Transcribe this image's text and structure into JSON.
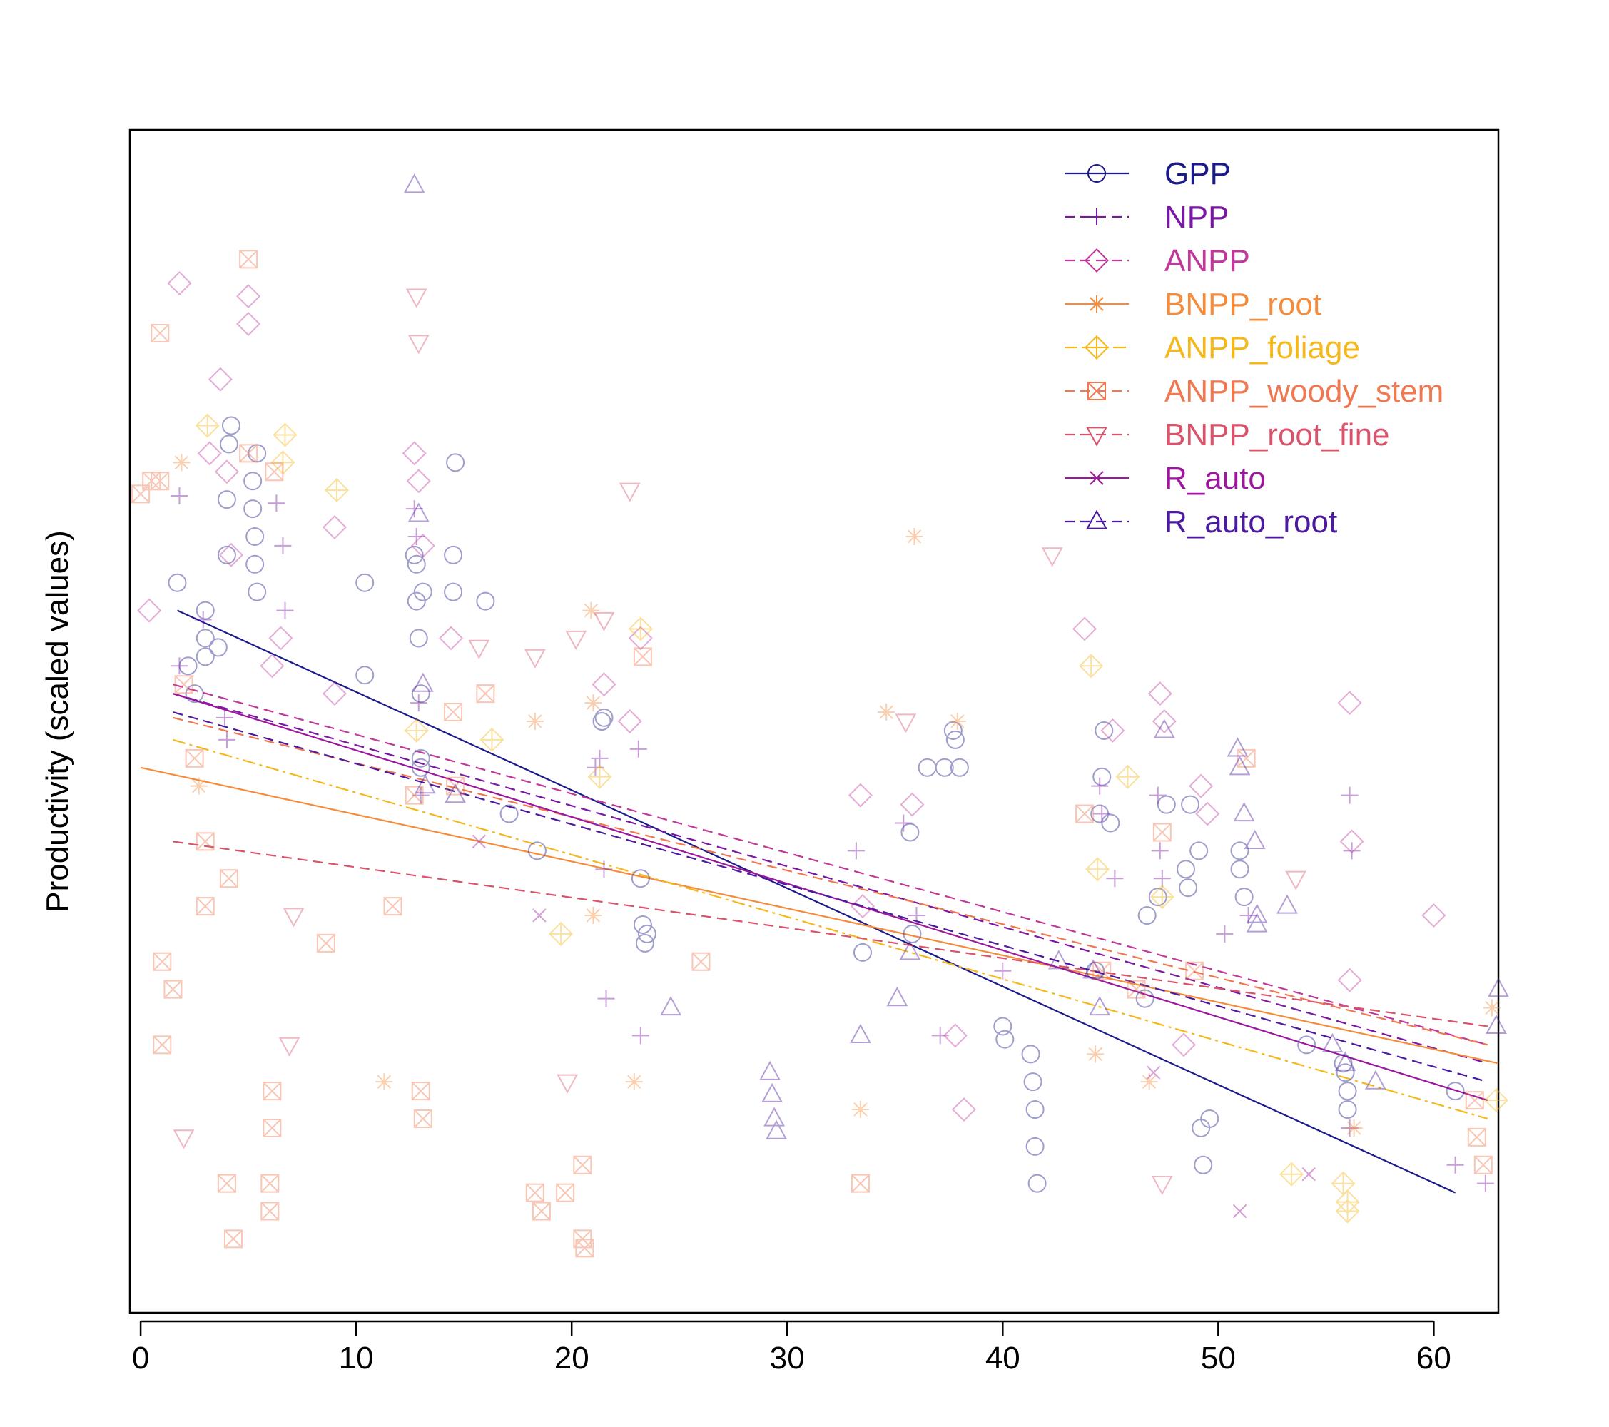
{
  "chart_data": {
    "type": "scatter",
    "title": "",
    "xlabel": "",
    "ylabel": "Productivity (scaled values)",
    "xlim": [
      -0.5,
      63
    ],
    "ylim": [
      -2.6,
      3.8
    ],
    "x_ticks": [
      "0",
      "10",
      "20",
      "30",
      "40",
      "50",
      "60"
    ],
    "y_ticks_shown": false,
    "grid": false,
    "legend_position": "top-right",
    "series": [
      {
        "name": "GPP",
        "color": "#1b1a8a",
        "marker": "circle",
        "line": "solid",
        "fit": {
          "x": [
            1.7,
            61
          ],
          "y": [
            1.2,
            -1.95
          ]
        },
        "points": [
          [
            1.7,
            1.35
          ],
          [
            2.2,
            0.9
          ],
          [
            2.5,
            0.75
          ],
          [
            3,
            1.2
          ],
          [
            3,
            1.05
          ],
          [
            3,
            0.95
          ],
          [
            3.6,
            1.0
          ],
          [
            4,
            1.5
          ],
          [
            4,
            1.8
          ],
          [
            4.1,
            2.1
          ],
          [
            4.2,
            2.2
          ],
          [
            5.2,
            1.9
          ],
          [
            5.2,
            1.75
          ],
          [
            5.3,
            1.6
          ],
          [
            5.3,
            1.45
          ],
          [
            5.4,
            2.05
          ],
          [
            5.4,
            1.3
          ],
          [
            10.4,
            1.35
          ],
          [
            10.4,
            0.85
          ],
          [
            12.7,
            1.5
          ],
          [
            12.8,
            1.45
          ],
          [
            12.8,
            1.25
          ],
          [
            12.9,
            1.05
          ],
          [
            13,
            0.75
          ],
          [
            13,
            0.4
          ],
          [
            13,
            0.35
          ],
          [
            13.1,
            1.3
          ],
          [
            14.5,
            1.5
          ],
          [
            14.5,
            1.3
          ],
          [
            14.6,
            2.0
          ],
          [
            16,
            1.25
          ],
          [
            17.1,
            0.1
          ],
          [
            18.4,
            -0.1
          ],
          [
            21.4,
            0.6
          ],
          [
            21.5,
            0.62
          ],
          [
            23.2,
            -0.25
          ],
          [
            23.3,
            -0.5
          ],
          [
            23.4,
            -0.6
          ],
          [
            23.5,
            -0.55
          ],
          [
            33.5,
            -0.65
          ],
          [
            35.7,
            0.0
          ],
          [
            35.8,
            -0.55
          ],
          [
            36.5,
            0.35
          ],
          [
            37.3,
            0.35
          ],
          [
            37.7,
            0.55
          ],
          [
            37.8,
            0.5
          ],
          [
            38,
            0.35
          ],
          [
            40,
            -1.05
          ],
          [
            40.1,
            -1.12
          ],
          [
            41.3,
            -1.2
          ],
          [
            41.4,
            -1.35
          ],
          [
            41.5,
            -1.5
          ],
          [
            41.5,
            -1.7
          ],
          [
            41.6,
            -1.9
          ],
          [
            44.3,
            -0.75
          ],
          [
            44.5,
            0.1
          ],
          [
            44.6,
            0.3
          ],
          [
            44.7,
            0.55
          ],
          [
            45,
            0.05
          ],
          [
            46.6,
            -0.9
          ],
          [
            46.7,
            -0.45
          ],
          [
            47.2,
            -0.35
          ],
          [
            47.6,
            0.15
          ],
          [
            48.5,
            -0.2
          ],
          [
            48.6,
            -0.3
          ],
          [
            48.7,
            0.15
          ],
          [
            49.1,
            -0.1
          ],
          [
            49.2,
            -1.6
          ],
          [
            49.3,
            -1.8
          ],
          [
            49.6,
            -1.55
          ],
          [
            51,
            -0.1
          ],
          [
            51,
            -0.2
          ],
          [
            51.2,
            -0.35
          ],
          [
            54.1,
            -1.15
          ],
          [
            55.8,
            -1.25
          ],
          [
            55.9,
            -1.3
          ],
          [
            56,
            -1.4
          ],
          [
            56,
            -1.5
          ],
          [
            61,
            -1.4
          ]
        ]
      },
      {
        "name": "NPP",
        "color": "#7b17a5",
        "marker": "plus",
        "line": "dashed",
        "fit": {
          "x": [
            1.5,
            62.5
          ],
          "y": [
            0.75,
            -1.25
          ]
        },
        "points": [
          [
            1.8,
            1.82
          ],
          [
            1.8,
            0.9
          ],
          [
            2.9,
            1.15
          ],
          [
            3.9,
            0.62
          ],
          [
            4,
            0.5
          ],
          [
            6.3,
            1.78
          ],
          [
            6.6,
            1.55
          ],
          [
            6.7,
            1.2
          ],
          [
            12.7,
            1.75
          ],
          [
            12.8,
            1.6
          ],
          [
            12.9,
            0.7
          ],
          [
            13,
            0.2
          ],
          [
            21.1,
            0.35
          ],
          [
            21.3,
            0.4
          ],
          [
            21.5,
            -0.2
          ],
          [
            21.6,
            -0.9
          ],
          [
            23.2,
            -1.1
          ],
          [
            23.1,
            0.45
          ],
          [
            33.2,
            -0.1
          ],
          [
            35.4,
            0.05
          ],
          [
            36,
            -0.45
          ],
          [
            37.1,
            -1.1
          ],
          [
            40,
            -0.75
          ],
          [
            44.5,
            0.25
          ],
          [
            44.6,
            0.1
          ],
          [
            45.2,
            -0.25
          ],
          [
            47.2,
            0.2
          ],
          [
            47.3,
            -0.1
          ],
          [
            47.4,
            -0.25
          ],
          [
            50.3,
            -0.55
          ],
          [
            51.4,
            -0.45
          ],
          [
            56.1,
            0.2
          ],
          [
            56.2,
            -0.1
          ],
          [
            56.1,
            -1.6
          ],
          [
            61,
            -1.8
          ],
          [
            62.4,
            -1.9
          ]
        ]
      },
      {
        "name": "ANPP",
        "color": "#c0399a",
        "marker": "diamond",
        "line": "dashed",
        "fit": {
          "x": [
            1.5,
            62.5
          ],
          "y": [
            0.8,
            -1.15
          ]
        },
        "points": [
          [
            1.8,
            2.97
          ],
          [
            0.4,
            1.2
          ],
          [
            3.2,
            2.05
          ],
          [
            3.7,
            2.45
          ],
          [
            4,
            1.95
          ],
          [
            4.2,
            1.5
          ],
          [
            5,
            2.75
          ],
          [
            5,
            2.9
          ],
          [
            6.1,
            0.9
          ],
          [
            6.5,
            1.05
          ],
          [
            9,
            1.65
          ],
          [
            9,
            0.75
          ],
          [
            12.7,
            2.05
          ],
          [
            12.9,
            1.9
          ],
          [
            13.1,
            1.55
          ],
          [
            14.4,
            1.05
          ],
          [
            21.5,
            0.8
          ],
          [
            22.7,
            0.6
          ],
          [
            23.2,
            1.05
          ],
          [
            33.4,
            0.2
          ],
          [
            33.5,
            -0.4
          ],
          [
            35.8,
            0.15
          ],
          [
            37.8,
            -1.1
          ],
          [
            38.2,
            -1.5
          ],
          [
            43.8,
            1.1
          ],
          [
            45.1,
            0.55
          ],
          [
            47.3,
            0.75
          ],
          [
            47.5,
            0.6
          ],
          [
            49.2,
            0.25
          ],
          [
            49.5,
            0.1
          ],
          [
            48.4,
            -1.15
          ],
          [
            56.1,
            0.7
          ],
          [
            56.2,
            -0.05
          ],
          [
            56.1,
            -0.8
          ],
          [
            60,
            -0.45
          ]
        ]
      },
      {
        "name": "BNPP_root",
        "color": "#f58c3c",
        "marker": "asterisk",
        "line": "solid",
        "fit": {
          "x": [
            0,
            63
          ],
          "y": [
            0.35,
            -1.25
          ]
        },
        "points": [
          [
            1.9,
            2.0
          ],
          [
            2.7,
            0.25
          ],
          [
            11.3,
            -1.35
          ],
          [
            18.3,
            0.6
          ],
          [
            20.9,
            1.2
          ],
          [
            21,
            0.7
          ],
          [
            21,
            -0.45
          ],
          [
            22.9,
            -1.35
          ],
          [
            33.4,
            -1.5
          ],
          [
            34.6,
            0.65
          ],
          [
            35.9,
            1.6
          ],
          [
            37.9,
            0.6
          ],
          [
            44.3,
            -1.2
          ],
          [
            46.8,
            -1.35
          ],
          [
            56.3,
            -1.6
          ],
          [
            62.7,
            -0.95
          ]
        ]
      },
      {
        "name": "ANPP_foliage",
        "color": "#f5b81c",
        "marker": "diamond-plus",
        "line": "dashdot",
        "fit": {
          "x": [
            1.5,
            62.5
          ],
          "y": [
            0.5,
            -1.55
          ]
        },
        "points": [
          [
            3.1,
            2.2
          ],
          [
            6.7,
            2.15
          ],
          [
            6.6,
            2.0
          ],
          [
            9.1,
            1.85
          ],
          [
            12.8,
            0.55
          ],
          [
            16.3,
            0.5
          ],
          [
            19.5,
            -0.55
          ],
          [
            21.3,
            0.3
          ],
          [
            23.2,
            1.1
          ],
          [
            44.1,
            0.9
          ],
          [
            44.4,
            -0.2
          ],
          [
            45.8,
            0.3
          ],
          [
            47.4,
            -0.35
          ],
          [
            53.4,
            -1.85
          ],
          [
            55.8,
            -1.9
          ],
          [
            56,
            -2.0
          ],
          [
            56,
            -2.05
          ],
          [
            62.9,
            -1.45
          ]
        ]
      },
      {
        "name": "ANPP_woody_stem",
        "color": "#f07850",
        "marker": "boxx",
        "line": "dashed",
        "fit": {
          "x": [
            1.5,
            62.5
          ],
          "y": [
            0.62,
            -1.15
          ]
        },
        "points": [
          [
            0,
            1.83
          ],
          [
            0.5,
            1.9
          ],
          [
            0.9,
            1.9
          ],
          [
            0.9,
            2.7
          ],
          [
            5,
            3.1
          ],
          [
            5,
            2.05
          ],
          [
            6.2,
            1.95
          ],
          [
            2,
            0.8
          ],
          [
            2.5,
            0.4
          ],
          [
            3,
            -0.05
          ],
          [
            3,
            -0.4
          ],
          [
            1,
            -0.7
          ],
          [
            1,
            -1.15
          ],
          [
            1.5,
            -0.85
          ],
          [
            4.1,
            -0.25
          ],
          [
            4,
            -1.9
          ],
          [
            4.3,
            -2.2
          ],
          [
            6.1,
            -1.4
          ],
          [
            6.1,
            -1.6
          ],
          [
            6,
            -1.9
          ],
          [
            6,
            -2.05
          ],
          [
            8.6,
            -0.6
          ],
          [
            11.7,
            -0.4
          ],
          [
            12.7,
            0.2
          ],
          [
            13,
            -1.4
          ],
          [
            13.1,
            -1.55
          ],
          [
            14.5,
            0.65
          ],
          [
            14.6,
            0.25
          ],
          [
            16,
            0.75
          ],
          [
            18.3,
            -1.95
          ],
          [
            18.6,
            -2.05
          ],
          [
            19.7,
            -1.95
          ],
          [
            20.5,
            -1.8
          ],
          [
            20.5,
            -2.2
          ],
          [
            20.6,
            -2.25
          ],
          [
            23.3,
            0.95
          ],
          [
            26,
            -0.7
          ],
          [
            33.4,
            -1.9
          ],
          [
            43.8,
            0.1
          ],
          [
            44.6,
            -0.75
          ],
          [
            46.2,
            -0.85
          ],
          [
            47.4,
            0.0
          ],
          [
            48.9,
            -0.75
          ],
          [
            51.3,
            0.4
          ],
          [
            61.9,
            -1.45
          ],
          [
            62,
            -1.65
          ],
          [
            62.3,
            -1.8
          ]
        ]
      },
      {
        "name": "BNPP_root_fine",
        "color": "#d9536b",
        "marker": "triangle-down",
        "line": "dashed",
        "fit": {
          "x": [
            1.5,
            62.5
          ],
          "y": [
            -0.05,
            -1.05
          ]
        },
        "points": [
          [
            2,
            -1.65
          ],
          [
            7.1,
            -0.45
          ],
          [
            6.9,
            -1.15
          ],
          [
            12.8,
            2.9
          ],
          [
            12.9,
            2.65
          ],
          [
            15.7,
            1.0
          ],
          [
            18.3,
            0.95
          ],
          [
            20.2,
            1.05
          ],
          [
            21.5,
            1.15
          ],
          [
            22.7,
            1.85
          ],
          [
            35.5,
            0.6
          ],
          [
            42.3,
            1.5
          ],
          [
            47.4,
            -1.9
          ],
          [
            53.6,
            -0.25
          ],
          [
            19.8,
            -1.35
          ]
        ]
      },
      {
        "name": "R_auto",
        "color": "#9c179e",
        "marker": "x",
        "line": "solid",
        "fit": {
          "x": [
            1.5,
            62.5
          ],
          "y": [
            0.75,
            -1.45
          ]
        },
        "points": [
          [
            15.7,
            -0.05
          ],
          [
            18.5,
            -0.45
          ],
          [
            47,
            -1.3
          ],
          [
            51,
            -2.05
          ],
          [
            54.2,
            -1.85
          ]
        ]
      },
      {
        "name": "R_auto_root",
        "color": "#4c1a9e",
        "marker": "triangle",
        "line": "dashed",
        "fit": {
          "x": [
            1.5,
            62.5
          ],
          "y": [
            0.65,
            -1.35
          ]
        },
        "points": [
          [
            12.7,
            3.5
          ],
          [
            12.9,
            1.72
          ],
          [
            13.1,
            0.8
          ],
          [
            13.2,
            0.25
          ],
          [
            14.6,
            0.2
          ],
          [
            24.6,
            -0.95
          ],
          [
            29.2,
            -1.3
          ],
          [
            29.3,
            -1.42
          ],
          [
            29.4,
            -1.55
          ],
          [
            29.5,
            -1.62
          ],
          [
            33.4,
            -1.1
          ],
          [
            35.1,
            -0.9
          ],
          [
            35.7,
            -0.65
          ],
          [
            42.6,
            -0.7
          ],
          [
            44.2,
            -0.75
          ],
          [
            44.5,
            -0.95
          ],
          [
            47.5,
            0.55
          ],
          [
            50.9,
            0.45
          ],
          [
            51,
            0.35
          ],
          [
            51.2,
            0.1
          ],
          [
            51.7,
            -0.05
          ],
          [
            51.8,
            -0.45
          ],
          [
            51.8,
            -0.5
          ],
          [
            53.2,
            -0.4
          ],
          [
            55.3,
            -1.15
          ],
          [
            55.9,
            -1.25
          ],
          [
            57.3,
            -1.35
          ],
          [
            63,
            -0.85
          ],
          [
            62.9,
            -1.05
          ]
        ]
      }
    ]
  }
}
